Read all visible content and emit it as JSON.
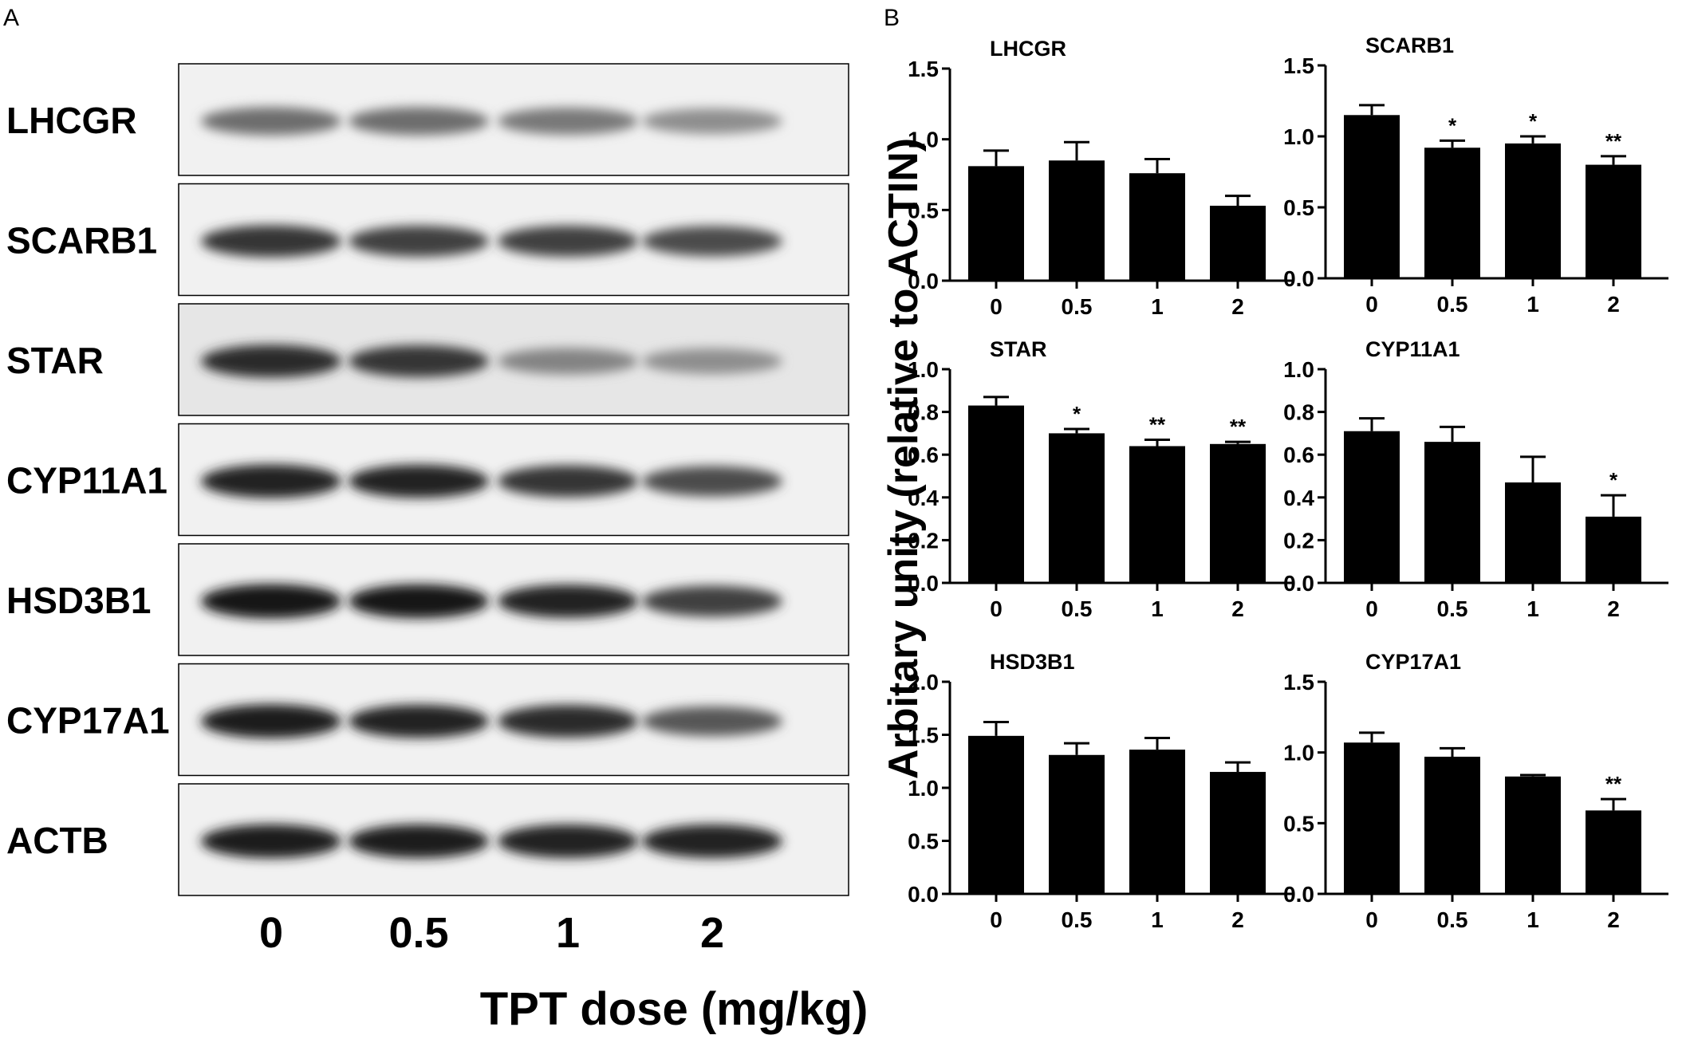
{
  "panels": {
    "a_label": "A",
    "b_label": "B"
  },
  "colors": {
    "bar": "#000000",
    "axis": "#000000",
    "background": "#ffffff"
  },
  "western_blot": {
    "lane_labels": [
      "0",
      "0.5",
      "1",
      "2"
    ],
    "proteins": [
      {
        "name": "LHCGR",
        "intensities": [
          0.55,
          0.55,
          0.5,
          0.4
        ]
      },
      {
        "name": "SCARB1",
        "intensities": [
          0.8,
          0.75,
          0.75,
          0.7
        ]
      },
      {
        "name": "STAR",
        "intensities": [
          0.85,
          0.8,
          0.45,
          0.4
        ]
      },
      {
        "name": "CYP11A1",
        "intensities": [
          0.9,
          0.88,
          0.8,
          0.7
        ]
      },
      {
        "name": "HSD3B1",
        "intensities": [
          0.95,
          0.93,
          0.88,
          0.75
        ]
      },
      {
        "name": "CYP17A1",
        "intensities": [
          0.92,
          0.88,
          0.85,
          0.65
        ]
      },
      {
        "name": "ACTB",
        "intensities": [
          0.92,
          0.92,
          0.9,
          0.9
        ]
      }
    ]
  },
  "shared_xlabel": "TPT dose  (mg/kg)",
  "shared_ylabel": "Arbitary unity  (relative to ACTIN)",
  "chart_data": [
    {
      "type": "bar",
      "title": "LHCGR",
      "categories": [
        "0",
        "0.5",
        "1",
        "2"
      ],
      "values": [
        0.81,
        0.85,
        0.76,
        0.53
      ],
      "errors": [
        0.11,
        0.13,
        0.1,
        0.07
      ],
      "significance": [
        "",
        "",
        "",
        ""
      ],
      "ylim": [
        0,
        1.5
      ],
      "yticks": [
        "0.0",
        "0.5",
        "1.0",
        "1.5"
      ]
    },
    {
      "type": "bar",
      "title": "SCARB1",
      "categories": [
        "0",
        "0.5",
        "1",
        "2"
      ],
      "values": [
        1.15,
        0.92,
        0.95,
        0.8
      ],
      "errors": [
        0.07,
        0.05,
        0.05,
        0.06
      ],
      "significance": [
        "",
        "*",
        "*",
        "**"
      ],
      "ylim": [
        0,
        1.5
      ],
      "yticks": [
        "0.0",
        "0.5",
        "1.0",
        "1.5"
      ]
    },
    {
      "type": "bar",
      "title": "STAR",
      "categories": [
        "0",
        "0.5",
        "1",
        "2"
      ],
      "values": [
        0.83,
        0.7,
        0.64,
        0.65
      ],
      "errors": [
        0.04,
        0.02,
        0.03,
        0.01
      ],
      "significance": [
        "",
        "*",
        "**",
        "**"
      ],
      "ylim": [
        0,
        1.0
      ],
      "yticks": [
        "0.0",
        "0.2",
        "0.4",
        "0.6",
        "0.8",
        "1.0"
      ]
    },
    {
      "type": "bar",
      "title": "CYP11A1",
      "categories": [
        "0",
        "0.5",
        "1",
        "2"
      ],
      "values": [
        0.71,
        0.66,
        0.47,
        0.31
      ],
      "errors": [
        0.06,
        0.07,
        0.12,
        0.1
      ],
      "significance": [
        "",
        "",
        "",
        "*"
      ],
      "ylim": [
        0,
        1.0
      ],
      "yticks": [
        "0.0",
        "0.2",
        "0.4",
        "0.6",
        "0.8",
        "1.0"
      ]
    },
    {
      "type": "bar",
      "title": "HSD3B1",
      "categories": [
        "0",
        "0.5",
        "1",
        "2"
      ],
      "values": [
        1.49,
        1.31,
        1.36,
        1.15
      ],
      "errors": [
        0.13,
        0.11,
        0.11,
        0.09
      ],
      "significance": [
        "",
        "",
        "",
        ""
      ],
      "ylim": [
        0,
        2.0
      ],
      "yticks": [
        "0.0",
        "0.5",
        "1.0",
        "1.5",
        "2.0"
      ]
    },
    {
      "type": "bar",
      "title": "CYP17A1",
      "categories": [
        "0",
        "0.5",
        "1",
        "2"
      ],
      "values": [
        1.07,
        0.97,
        0.83,
        0.59
      ],
      "errors": [
        0.07,
        0.06,
        0.01,
        0.08
      ],
      "significance": [
        "",
        "",
        "",
        "**"
      ],
      "ylim": [
        0,
        1.5
      ],
      "yticks": [
        "0.0",
        "0.5",
        "1.0",
        "1.5"
      ]
    }
  ]
}
